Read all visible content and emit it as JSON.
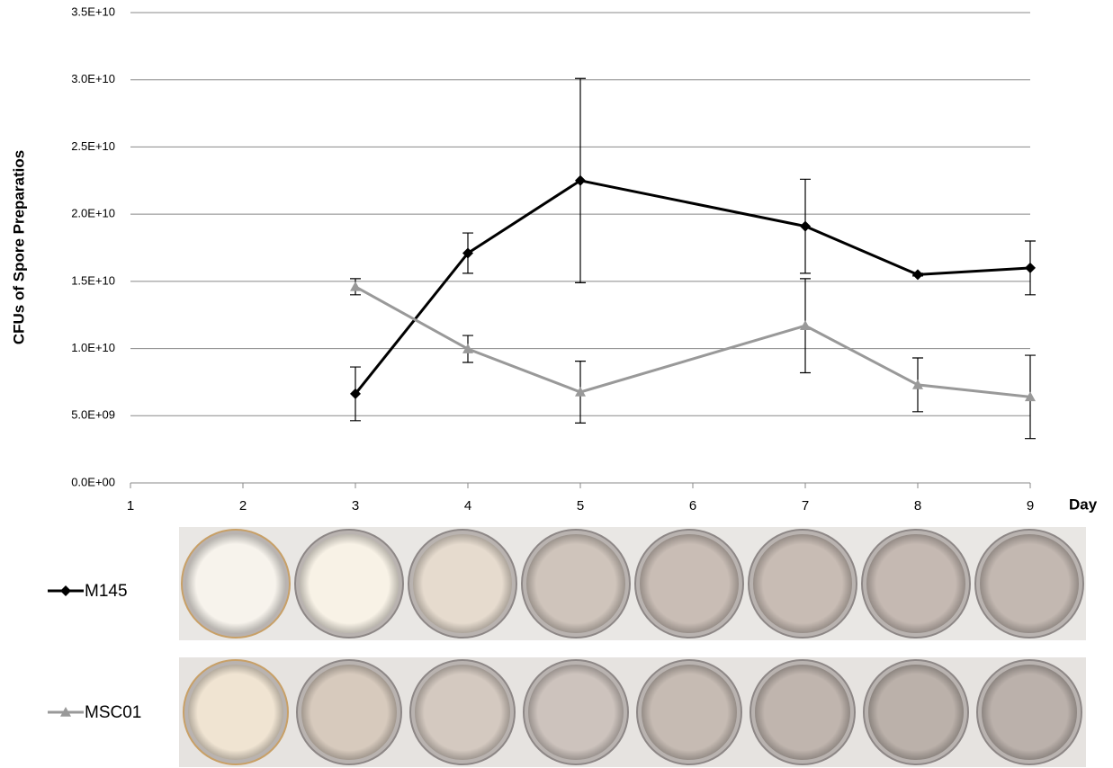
{
  "chart_data": {
    "type": "line",
    "y_label": "CFUs of Spore Preparatios",
    "x_label": "Day",
    "x": [
      3,
      4,
      5,
      7,
      8,
      9
    ],
    "series": [
      {
        "name": "M145",
        "color": "#000000",
        "marker": "diamond",
        "values": [
          6630000000,
          17100000000,
          22500000000,
          19100000000,
          15500000000,
          16000000000
        ],
        "errors": [
          2000000000,
          1500000000,
          7600000000,
          3500000000,
          100000000,
          2000000000
        ]
      },
      {
        "name": "MSC01",
        "color": "#999999",
        "marker": "triangle",
        "values": [
          14600000000,
          9970000000,
          6760000000,
          11700000000,
          7300000000,
          6400000000
        ],
        "errors": [
          600000000,
          1000000000,
          2300000000,
          3500000000,
          2000000000,
          3100000000
        ]
      }
    ],
    "xlim": [
      1,
      9
    ],
    "xticks": [
      1,
      2,
      3,
      4,
      5,
      6,
      7,
      8,
      9
    ],
    "ylim": [
      0,
      35000000000
    ],
    "yticks": [
      {
        "value": 0,
        "label": "0.0E+00"
      },
      {
        "value": 5000000000,
        "label": "5.0E+09"
      },
      {
        "value": 10000000000,
        "label": "1.0E+10"
      },
      {
        "value": 15000000000,
        "label": "1.5E+10"
      },
      {
        "value": 20000000000,
        "label": "2.0E+10"
      },
      {
        "value": 25000000000,
        "label": "2.5E+10"
      },
      {
        "value": 30000000000,
        "label": "3.0E+10"
      },
      {
        "value": 35000000000,
        "label": "3.5E+10"
      }
    ],
    "grid": true
  }
}
